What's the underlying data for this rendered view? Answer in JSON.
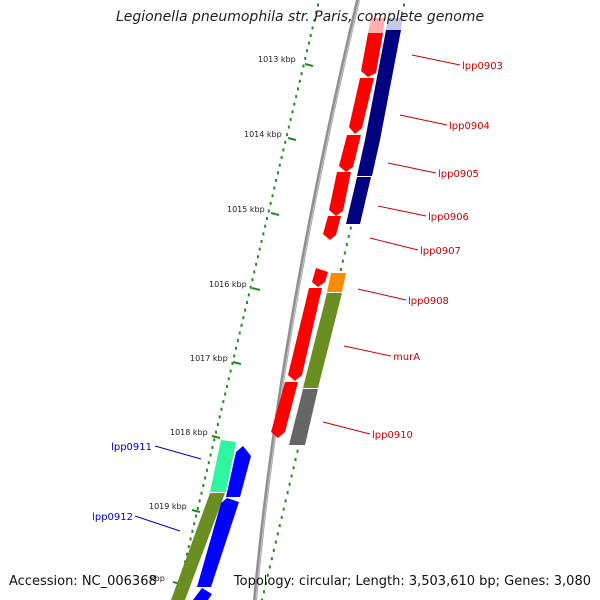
{
  "title": "Legionella pneumophila str. Paris, complete genome",
  "footer": {
    "accession": "Accession: NC_006368",
    "topology": "Topology: circular; Length: 3,503,610 bp; Genes: 3,080"
  },
  "scale_ticks": [
    {
      "label": "1013 kbp",
      "kbp": 1013
    },
    {
      "label": "1014 kbp",
      "kbp": 1014
    },
    {
      "label": "1015 kbp",
      "kbp": 1015
    },
    {
      "label": "1016 kbp",
      "kbp": 1016
    },
    {
      "label": "1017 kbp",
      "kbp": 1017
    },
    {
      "label": "1018 kbp",
      "kbp": 1018
    },
    {
      "label": "1019 kbp",
      "kbp": 1019
    },
    {
      "label": "kbp",
      "kbp": 1020
    }
  ],
  "gene_labels": [
    {
      "name": "lpp0903",
      "color": "#cc0000"
    },
    {
      "name": "lpp0904",
      "color": "#cc0000"
    },
    {
      "name": "lpp0905",
      "color": "#cc0000"
    },
    {
      "name": "lpp0906",
      "color": "#cc0000"
    },
    {
      "name": "lpp0907",
      "color": "#cc0000"
    },
    {
      "name": "lpp0908",
      "color": "#cc0000"
    },
    {
      "name": "murA",
      "color": "#cc0000"
    },
    {
      "name": "lpp0910",
      "color": "#cc0000"
    },
    {
      "name": "lpp0911",
      "color": "#0000cc"
    },
    {
      "name": "lpp0912",
      "color": "#0000cc"
    }
  ],
  "colors": {
    "cds_forward": "#ff0000",
    "cds_reverse": "#0000ff",
    "cog_dark_blue": "#000080",
    "cog_olive": "#6b8e23",
    "cog_orange": "#ff8c00",
    "cog_grey": "#666666",
    "cog_mint": "#2ef5a0",
    "backbone": "#8c8c8c",
    "scale_dots": "#228b22"
  }
}
